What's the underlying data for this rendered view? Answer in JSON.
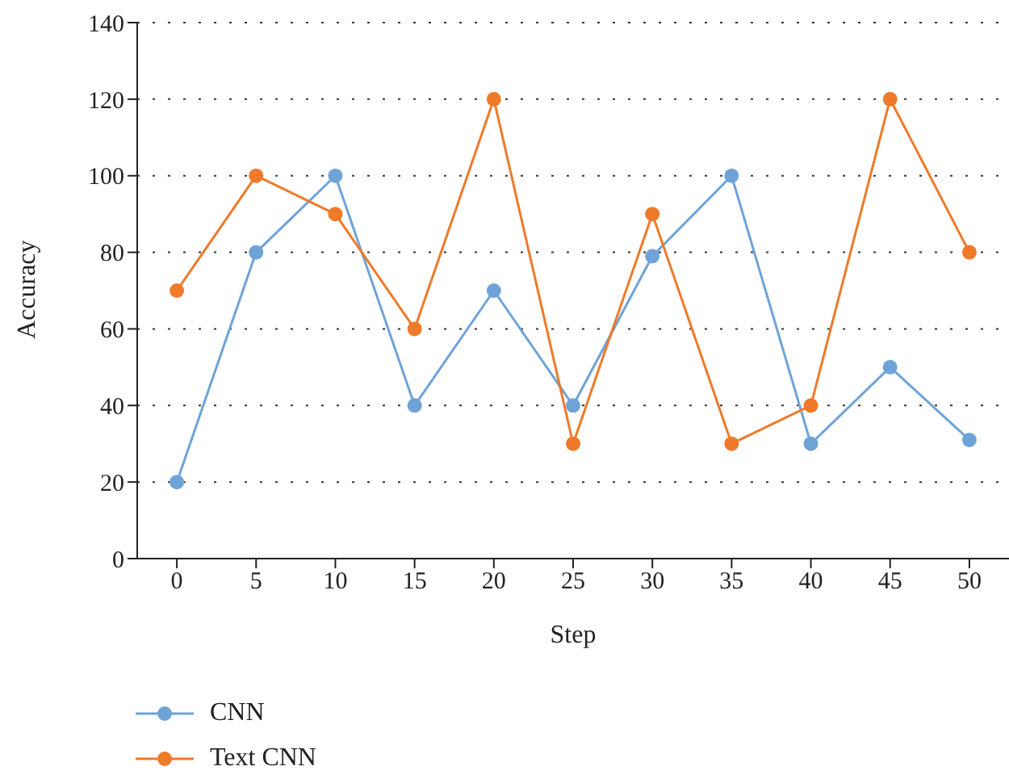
{
  "chart_data": {
    "type": "line",
    "xlabel": "Step",
    "ylabel": "Accuracy",
    "x": [
      0,
      5,
      10,
      15,
      20,
      25,
      30,
      35,
      40,
      45,
      50
    ],
    "xlim": [
      -2.5,
      52.5
    ],
    "xticks": [
      0,
      5,
      10,
      15,
      20,
      25,
      30,
      35,
      40,
      45,
      50
    ],
    "ylim": [
      0,
      140
    ],
    "yticks": [
      0,
      20,
      40,
      60,
      80,
      100,
      120,
      140
    ],
    "grid": "y",
    "legend": "bottom left",
    "marker": "circle",
    "line_style": "solid",
    "series": [
      {
        "name": "CNN",
        "color": "#6fa3d8",
        "values": [
          20,
          80,
          100,
          40,
          70,
          40,
          79,
          100,
          30,
          50,
          31
        ]
      },
      {
        "name": "Text CNN",
        "color": "#ee7a2a",
        "values": [
          70,
          100,
          90,
          60,
          120,
          30,
          90,
          30,
          40,
          120,
          80
        ]
      }
    ]
  }
}
